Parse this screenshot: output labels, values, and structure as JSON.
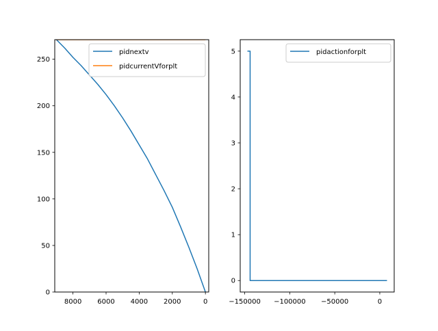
{
  "chart_data": [
    {
      "type": "line",
      "xlim": [
        9100,
        -200
      ],
      "ylim": [
        0,
        271
      ],
      "x_ticks": [
        8000,
        6000,
        4000,
        2000,
        0
      ],
      "x_tick_labels": [
        "8000",
        "6000",
        "4000",
        "2000",
        "0"
      ],
      "y_ticks": [
        0,
        50,
        100,
        150,
        200,
        250
      ],
      "y_tick_labels": [
        "0",
        "50",
        "100",
        "150",
        "200",
        "250"
      ],
      "legend_position": "upper-right",
      "series": [
        {
          "name": "pidnextv",
          "color": "#1f77b4",
          "x": [
            0,
            500,
            1000,
            1500,
            2000,
            2500,
            3000,
            3500,
            4000,
            4500,
            5000,
            5500,
            6000,
            6500,
            7000,
            7500,
            8000,
            8500,
            9000
          ],
          "y": [
            0,
            25,
            48,
            70,
            91,
            109,
            126,
            143,
            158,
            173,
            187,
            200,
            212,
            223,
            233,
            243,
            252,
            262,
            271
          ]
        },
        {
          "name": "pidcurrentVforplt",
          "color": "#ff7f0e",
          "x": [
            0,
            9000
          ],
          "y": [
            271,
            271
          ]
        }
      ]
    },
    {
      "type": "line",
      "xlim": [
        -155000,
        16000
      ],
      "ylim": [
        -0.25,
        5.25
      ],
      "x_ticks": [
        -150000,
        -100000,
        -50000,
        0
      ],
      "x_tick_labels": [
        "−150000",
        "−100000",
        "−50000",
        "0"
      ],
      "y_ticks": [
        0,
        1,
        2,
        3,
        4,
        5
      ],
      "y_tick_labels": [
        "0",
        "1",
        "2",
        "3",
        "4",
        "5"
      ],
      "legend_position": "upper-right",
      "series": [
        {
          "name": "pidactionforplt",
          "color": "#1f77b4",
          "x": [
            -147000,
            -144000,
            -144000,
            8000
          ],
          "y": [
            5,
            5,
            0,
            0
          ]
        }
      ]
    }
  ]
}
